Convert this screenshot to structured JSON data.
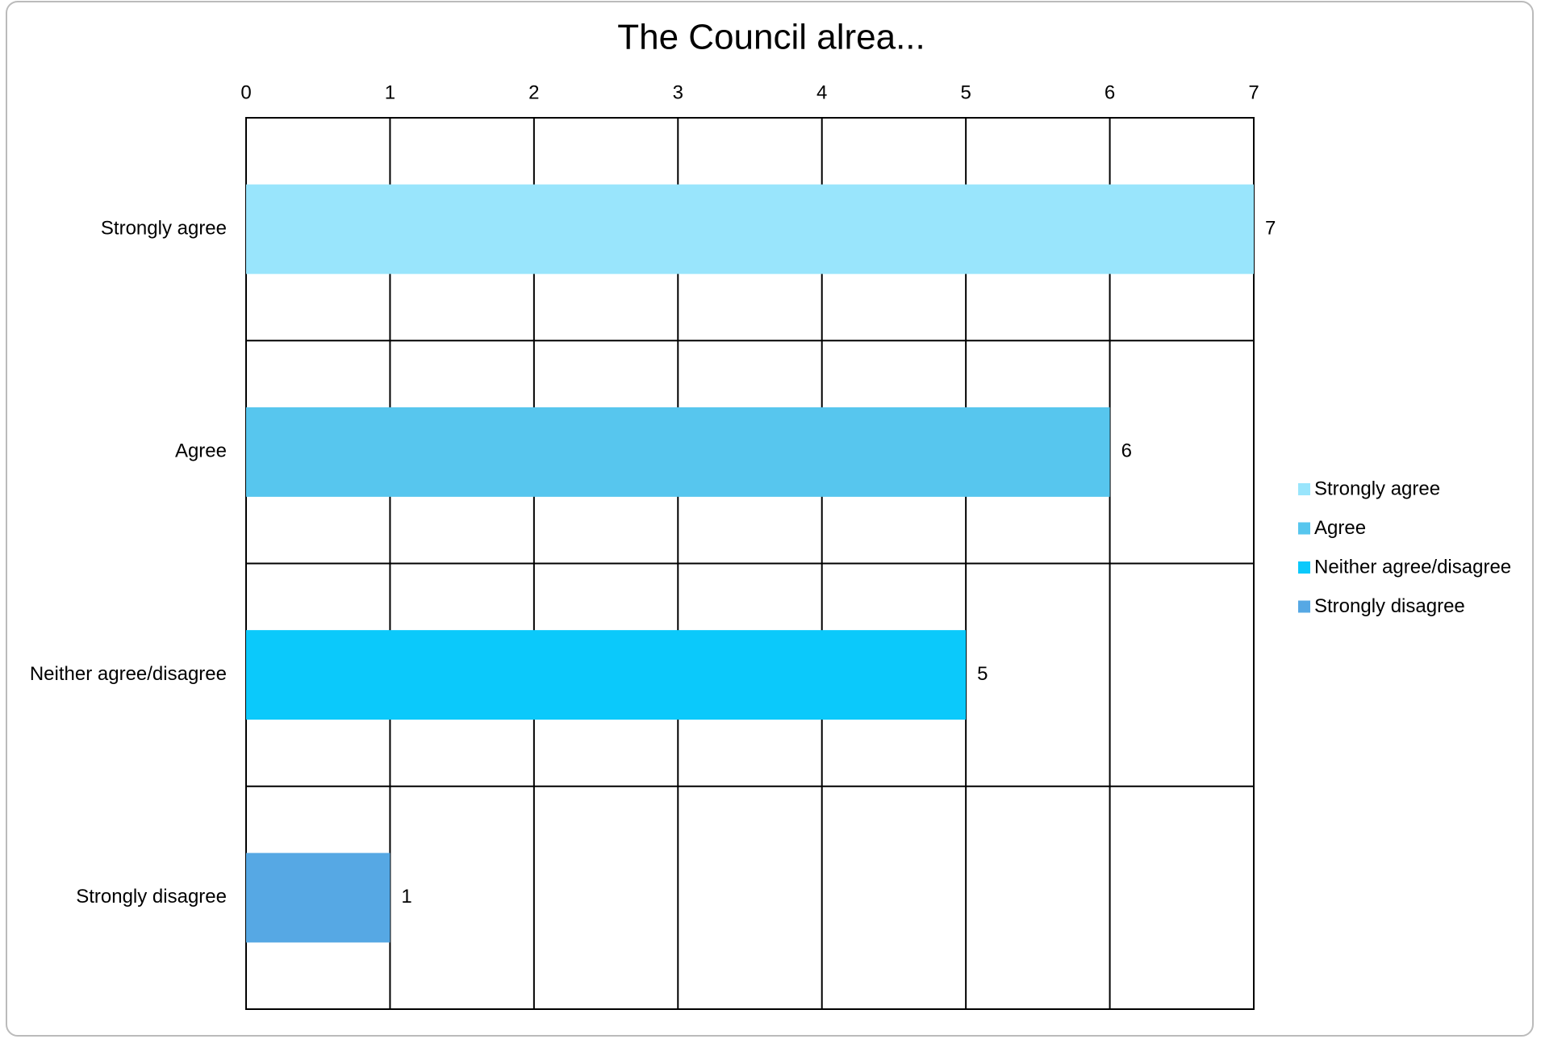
{
  "chart_data": {
    "type": "bar",
    "orientation": "horizontal",
    "title": "The Council alrea...",
    "categories": [
      "Strongly agree",
      "Agree",
      "Neither agree/disagree",
      "Strongly disagree"
    ],
    "values": [
      7,
      6,
      5,
      1
    ],
    "colors": [
      "#99e5fc",
      "#57c6ee",
      "#0bc9fb",
      "#56a8e4"
    ],
    "xlim": [
      0,
      7
    ],
    "xticks": [
      0,
      1,
      2,
      3,
      4,
      5,
      6,
      7
    ],
    "grid": true,
    "legend": "right"
  }
}
